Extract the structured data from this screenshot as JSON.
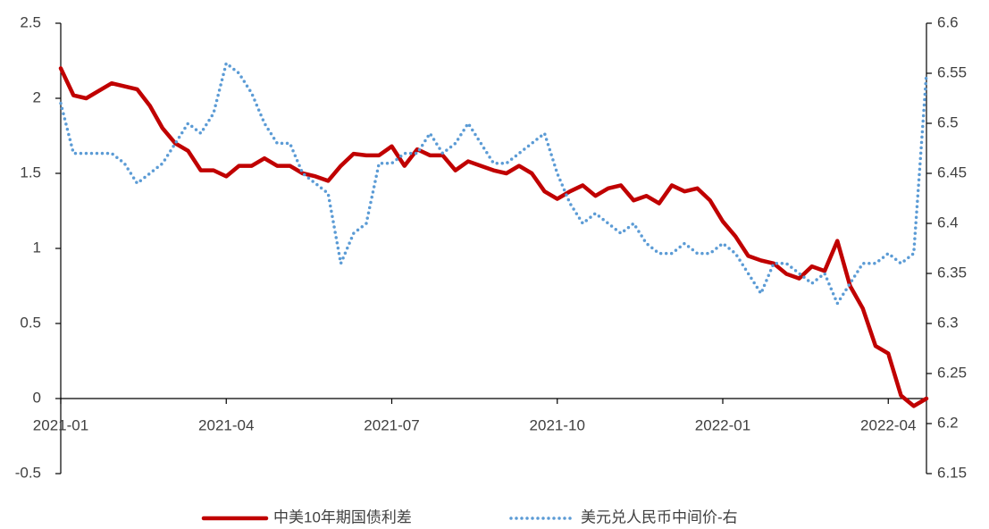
{
  "chart_data": {
    "type": "line",
    "categories": [
      "2021-01",
      null,
      null,
      null,
      null,
      null,
      null,
      null,
      null,
      null,
      null,
      null,
      null,
      "2021-04",
      null,
      null,
      null,
      null,
      null,
      null,
      null,
      null,
      null,
      null,
      null,
      null,
      "2021-07",
      null,
      null,
      null,
      null,
      null,
      null,
      null,
      null,
      null,
      null,
      null,
      null,
      "2021-10",
      null,
      null,
      null,
      null,
      null,
      null,
      null,
      null,
      null,
      null,
      null,
      null,
      "2022-01",
      null,
      null,
      null,
      null,
      null,
      null,
      null,
      null,
      null,
      null,
      null,
      null,
      "2022-04",
      null,
      null,
      null
    ],
    "series": [
      {
        "name": "中美10年期国债利差",
        "color": "#c00000",
        "axis": "y",
        "values": [
          2.2,
          2.02,
          2.0,
          2.05,
          2.1,
          2.08,
          2.06,
          1.95,
          1.8,
          1.7,
          1.65,
          1.52,
          1.52,
          1.48,
          1.55,
          1.55,
          1.6,
          1.55,
          1.55,
          1.5,
          1.48,
          1.45,
          1.55,
          1.63,
          1.62,
          1.62,
          1.68,
          1.55,
          1.66,
          1.62,
          1.62,
          1.52,
          1.58,
          1.55,
          1.52,
          1.5,
          1.55,
          1.5,
          1.38,
          1.33,
          1.38,
          1.42,
          1.35,
          1.4,
          1.42,
          1.32,
          1.35,
          1.3,
          1.42,
          1.38,
          1.4,
          1.32,
          1.18,
          1.08,
          0.95,
          0.92,
          0.9,
          0.83,
          0.8,
          0.88,
          0.85,
          1.05,
          0.75,
          0.6,
          0.35,
          0.3,
          0.02,
          -0.05,
          0.0
        ]
      },
      {
        "name": "美元兑人民币中间价-右",
        "color": "#5b9bd5",
        "axis": "y2",
        "values": [
          6.52,
          6.47,
          6.47,
          6.47,
          6.47,
          6.46,
          6.44,
          6.45,
          6.46,
          6.48,
          6.5,
          6.49,
          6.51,
          6.56,
          6.55,
          6.53,
          6.5,
          6.48,
          6.48,
          6.45,
          6.44,
          6.43,
          6.36,
          6.39,
          6.4,
          6.46,
          6.46,
          6.47,
          6.47,
          6.49,
          6.47,
          6.48,
          6.5,
          6.48,
          6.46,
          6.46,
          6.47,
          6.48,
          6.49,
          6.45,
          6.42,
          6.4,
          6.41,
          6.4,
          6.39,
          6.4,
          6.38,
          6.37,
          6.37,
          6.38,
          6.37,
          6.37,
          6.38,
          6.37,
          6.35,
          6.33,
          6.36,
          6.36,
          6.35,
          6.34,
          6.35,
          6.32,
          6.34,
          6.36,
          6.36,
          6.37,
          6.36,
          6.37,
          6.55
        ]
      }
    ],
    "ylim": [
      -0.5,
      2.5
    ],
    "yticks": [
      -0.5,
      0,
      0.5,
      1,
      1.5,
      2,
      2.5
    ],
    "y2lim": [
      6.15,
      6.6
    ],
    "y2ticks": [
      6.15,
      6.2,
      6.25,
      6.3,
      6.35,
      6.4,
      6.45,
      6.5,
      6.55,
      6.6
    ],
    "grid": false,
    "legend": "bottom"
  }
}
